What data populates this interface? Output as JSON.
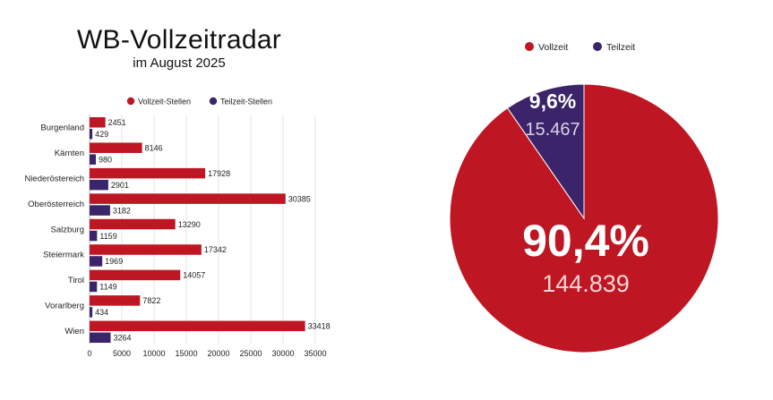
{
  "colors": {
    "vollzeit": "#BE1622",
    "teilzeit": "#3B2469",
    "grid": "#e4e4e4",
    "axis": "#bbbbbb"
  },
  "header": {
    "title": "WB-Vollzeitradar",
    "subtitle": "im August 2025"
  },
  "chart_data": [
    {
      "type": "bar",
      "orientation": "horizontal",
      "categories": [
        "Burgenland",
        "Kärnten",
        "Niederöstereich",
        "Oberösterreich",
        "Salzburg",
        "Steiermark",
        "Tirol",
        "Vorarlberg",
        "Wien"
      ],
      "series": [
        {
          "name": "Vollzeit-Stellen",
          "values": [
            2451,
            8146,
            17928,
            30385,
            13290,
            17342,
            14057,
            7822,
            33418
          ]
        },
        {
          "name": "Teilzeit-Stellen",
          "values": [
            429,
            980,
            2901,
            3182,
            1159,
            1969,
            1149,
            434,
            3264
          ]
        }
      ],
      "xlim": [
        0,
        35000
      ],
      "xticks": [
        0,
        5000,
        10000,
        15000,
        20000,
        25000,
        30000,
        35000
      ],
      "grid": true,
      "legend_position": "top"
    },
    {
      "type": "pie",
      "labels": [
        "Vollzeit",
        "Teilzeit"
      ],
      "values": [
        144839,
        15467
      ],
      "percent_labels": [
        "90,4%",
        "9,6%"
      ],
      "value_labels": [
        "144.839",
        "15.467"
      ],
      "legend_position": "top"
    }
  ]
}
